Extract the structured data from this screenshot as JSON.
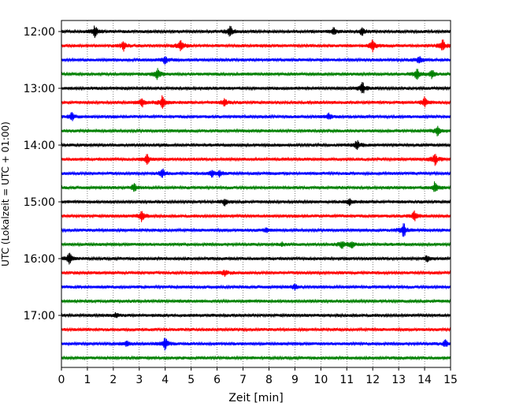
{
  "chart_data": {
    "type": "line",
    "title": "",
    "xlabel": "Zeit  [min]",
    "ylabel": "UTC (Lokalzeit = UTC + 01:00)",
    "xlim": [
      0,
      15
    ],
    "x_ticks": [
      "0",
      "1",
      "2",
      "3",
      "4",
      "5",
      "6",
      "7",
      "8",
      "9",
      "10",
      "11",
      "12",
      "13",
      "14",
      "15"
    ],
    "y_ticks": [
      "12:00",
      "13:00",
      "14:00",
      "15:00",
      "16:00",
      "17:00"
    ],
    "grid": "vertical-dotted",
    "trace_interval_min": 15,
    "colors": [
      "#000000",
      "#ff0000",
      "#0000ff",
      "#008000"
    ],
    "series": [
      {
        "start": "12:00",
        "color": "#000000",
        "events": [
          [
            1.3,
            1
          ],
          [
            6.5,
            0.9
          ],
          [
            10.5,
            0.6
          ],
          [
            11.6,
            0.7
          ]
        ]
      },
      {
        "start": "12:15",
        "color": "#ff0000",
        "events": [
          [
            2.4,
            0.8
          ],
          [
            4.6,
            1
          ],
          [
            12,
            1.1
          ],
          [
            14.7,
            1
          ]
        ]
      },
      {
        "start": "12:30",
        "color": "#0000ff",
        "events": [
          [
            4,
            0.8
          ],
          [
            13.8,
            0.8
          ]
        ]
      },
      {
        "start": "12:45",
        "color": "#008000",
        "events": [
          [
            3.7,
            1.1
          ],
          [
            13.7,
            1
          ],
          [
            14.3,
            0.8
          ]
        ]
      },
      {
        "start": "13:00",
        "color": "#000000",
        "events": [
          [
            11.6,
            1.1
          ]
        ]
      },
      {
        "start": "13:15",
        "color": "#ff0000",
        "events": [
          [
            3.1,
            0.8
          ],
          [
            3.9,
            1.2
          ],
          [
            6.3,
            0.6
          ],
          [
            14,
            1
          ]
        ]
      },
      {
        "start": "13:30",
        "color": "#0000ff",
        "events": [
          [
            0.4,
            0.7
          ],
          [
            10.3,
            0.6
          ]
        ]
      },
      {
        "start": "13:45",
        "color": "#008000",
        "events": [
          [
            14.5,
            0.9
          ]
        ]
      },
      {
        "start": "14:00",
        "color": "#000000",
        "events": [
          [
            11.4,
            0.9
          ]
        ]
      },
      {
        "start": "14:15",
        "color": "#ff0000",
        "events": [
          [
            3.3,
            0.9
          ],
          [
            14.4,
            1
          ]
        ]
      },
      {
        "start": "14:30",
        "color": "#0000ff",
        "events": [
          [
            3.9,
            0.7
          ],
          [
            5.8,
            0.6
          ],
          [
            6.1,
            0.5
          ]
        ]
      },
      {
        "start": "14:45",
        "color": "#008000",
        "events": [
          [
            2.8,
            0.8
          ],
          [
            14.4,
            1
          ]
        ]
      },
      {
        "start": "15:00",
        "color": "#000000",
        "events": [
          [
            6.3,
            0.6
          ],
          [
            11.1,
            0.6
          ]
        ]
      },
      {
        "start": "15:15",
        "color": "#ff0000",
        "events": [
          [
            3.1,
            0.9
          ],
          [
            13.6,
            0.9
          ]
        ]
      },
      {
        "start": "15:30",
        "color": "#0000ff",
        "events": [
          [
            13.2,
            1.3
          ],
          [
            7.9,
            0.4
          ]
        ]
      },
      {
        "start": "15:45",
        "color": "#008000",
        "events": [
          [
            10.8,
            0.7
          ],
          [
            11.2,
            0.6
          ],
          [
            8.5,
            0.3
          ]
        ]
      },
      {
        "start": "16:00",
        "color": "#000000",
        "events": [
          [
            0.3,
            1
          ],
          [
            14.1,
            0.5
          ]
        ]
      },
      {
        "start": "16:15",
        "color": "#ff0000",
        "events": [
          [
            6.3,
            0.5
          ]
        ]
      },
      {
        "start": "16:30",
        "color": "#0000ff",
        "events": [
          [
            9,
            0.4
          ]
        ]
      },
      {
        "start": "16:45",
        "color": "#008000",
        "events": []
      },
      {
        "start": "17:00",
        "color": "#000000",
        "events": [
          [
            2.1,
            0.4
          ]
        ]
      },
      {
        "start": "17:15",
        "color": "#ff0000",
        "events": []
      },
      {
        "start": "17:30",
        "color": "#0000ff",
        "events": [
          [
            4,
            1.1
          ],
          [
            2.5,
            0.5
          ],
          [
            14.8,
            0.6
          ]
        ]
      },
      {
        "start": "17:45",
        "color": "#008000",
        "events": []
      }
    ]
  }
}
